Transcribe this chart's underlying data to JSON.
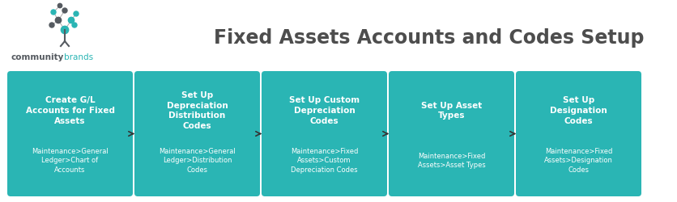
{
  "title": "Fixed Assets Accounts and Codes Setup",
  "title_fontsize": 17,
  "title_color": "#4d4d4d",
  "background_color": "#ffffff",
  "box_color": "#2ab5b4",
  "box_text_color": "#ffffff",
  "arrow_color": "#333333",
  "optional_color": "#666666",
  "boxes": [
    {
      "title": "Create G/L\nAccounts for Fixed\nAssets",
      "subtitle": "Maintenance>General\nLedger>Chart of\nAccounts",
      "optional": false
    },
    {
      "title": "Set Up\nDepreciation\nDistribution\nCodes",
      "subtitle": "Maintenance>General\nLedger>Distribution\nCodes",
      "optional": false
    },
    {
      "title": "Set Up Custom\nDepreciation\nCodes",
      "subtitle": "Maintenance>Fixed\nAssets>Custom\nDepreciation Codes",
      "optional": true
    },
    {
      "title": "Set Up Asset\nTypes",
      "subtitle": "Maintenance>Fixed\nAssets>Asset Types",
      "optional": false
    },
    {
      "title": "Set Up\nDesignation\nCodes",
      "subtitle": "Maintenance>Fixed\nAssets>Designation\nCodes",
      "optional": true
    }
  ],
  "teal": "#2ab5b4",
  "dark_gray": "#555a60",
  "logo_community_color": "#555a60",
  "logo_brands_color": "#2ab5b4"
}
